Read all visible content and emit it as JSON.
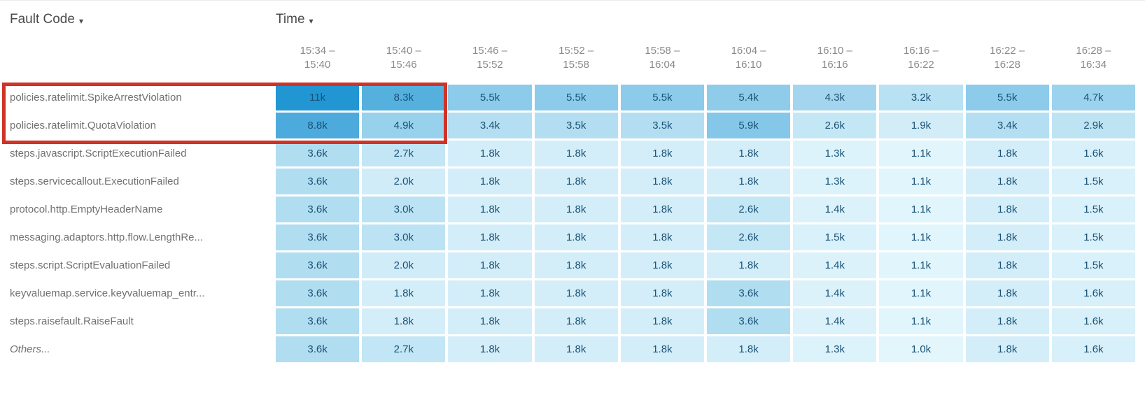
{
  "toolbar": {
    "fault_code_label": "Fault Code",
    "time_label": "Time",
    "dropdown_caret": "▾"
  },
  "highlight": {
    "color": "#cf3327",
    "note": "red rectangle drawn around the first two fault-code rows, spanning the label column and the first two time columns"
  },
  "colors": {
    "heat_min": "#e3f6fc",
    "heat_max": "#2196d3",
    "cell_text": "#1a5276",
    "row_label_text": "#717171",
    "toolbar_text": "#4a4a4a",
    "column_header_text": "#8a8a8a"
  },
  "chart_data": {
    "type": "heatmap",
    "xlabel": "Time",
    "ylabel": "Fault Code",
    "unit": "k",
    "columns": [
      "15:34 – 15:40",
      "15:40 – 15:46",
      "15:46 – 15:52",
      "15:52 – 15:58",
      "15:58 – 16:04",
      "16:04 – 16:10",
      "16:10 – 16:16",
      "16:16 – 16:22",
      "16:22 – 16:28",
      "16:28 – 16:34"
    ],
    "rows": [
      {
        "label": "policies.ratelimit.SpikeArrestViolation",
        "italic": false
      },
      {
        "label": "policies.ratelimit.QuotaViolation",
        "italic": false
      },
      {
        "label": "steps.javascript.ScriptExecutionFailed",
        "italic": false
      },
      {
        "label": "steps.servicecallout.ExecutionFailed",
        "italic": false
      },
      {
        "label": "protocol.http.EmptyHeaderName",
        "italic": false
      },
      {
        "label": "messaging.adaptors.http.flow.LengthRe...",
        "italic": false
      },
      {
        "label": "steps.script.ScriptEvaluationFailed",
        "italic": false
      },
      {
        "label": "keyvaluemap.service.keyvaluemap_entr...",
        "italic": false
      },
      {
        "label": "steps.raisefault.RaiseFault",
        "italic": false
      },
      {
        "label": "Others...",
        "italic": true
      }
    ],
    "values_k": [
      [
        11,
        8.3,
        5.5,
        5.5,
        5.5,
        5.4,
        4.3,
        3.2,
        5.5,
        4.7
      ],
      [
        8.8,
        4.9,
        3.4,
        3.5,
        3.5,
        5.9,
        2.6,
        1.9,
        3.4,
        2.9
      ],
      [
        3.6,
        2.7,
        1.8,
        1.8,
        1.8,
        1.8,
        1.3,
        1.1,
        1.8,
        1.6
      ],
      [
        3.6,
        2.0,
        1.8,
        1.8,
        1.8,
        1.8,
        1.3,
        1.1,
        1.8,
        1.5
      ],
      [
        3.6,
        3.0,
        1.8,
        1.8,
        1.8,
        2.6,
        1.4,
        1.1,
        1.8,
        1.5
      ],
      [
        3.6,
        3.0,
        1.8,
        1.8,
        1.8,
        2.6,
        1.5,
        1.1,
        1.8,
        1.5
      ],
      [
        3.6,
        2.0,
        1.8,
        1.8,
        1.8,
        1.8,
        1.4,
        1.1,
        1.8,
        1.5
      ],
      [
        3.6,
        1.8,
        1.8,
        1.8,
        1.8,
        3.6,
        1.4,
        1.1,
        1.8,
        1.6
      ],
      [
        3.6,
        1.8,
        1.8,
        1.8,
        1.8,
        3.6,
        1.4,
        1.1,
        1.8,
        1.6
      ],
      [
        3.6,
        2.7,
        1.8,
        1.8,
        1.8,
        1.8,
        1.3,
        1.0,
        1.8,
        1.6
      ]
    ],
    "values_display": [
      [
        "11k",
        "8.3k",
        "5.5k",
        "5.5k",
        "5.5k",
        "5.4k",
        "4.3k",
        "3.2k",
        "5.5k",
        "4.7k"
      ],
      [
        "8.8k",
        "4.9k",
        "3.4k",
        "3.5k",
        "3.5k",
        "5.9k",
        "2.6k",
        "1.9k",
        "3.4k",
        "2.9k"
      ],
      [
        "3.6k",
        "2.7k",
        "1.8k",
        "1.8k",
        "1.8k",
        "1.8k",
        "1.3k",
        "1.1k",
        "1.8k",
        "1.6k"
      ],
      [
        "3.6k",
        "2.0k",
        "1.8k",
        "1.8k",
        "1.8k",
        "1.8k",
        "1.3k",
        "1.1k",
        "1.8k",
        "1.5k"
      ],
      [
        "3.6k",
        "3.0k",
        "1.8k",
        "1.8k",
        "1.8k",
        "2.6k",
        "1.4k",
        "1.1k",
        "1.8k",
        "1.5k"
      ],
      [
        "3.6k",
        "3.0k",
        "1.8k",
        "1.8k",
        "1.8k",
        "2.6k",
        "1.5k",
        "1.1k",
        "1.8k",
        "1.5k"
      ],
      [
        "3.6k",
        "2.0k",
        "1.8k",
        "1.8k",
        "1.8k",
        "1.8k",
        "1.4k",
        "1.1k",
        "1.8k",
        "1.5k"
      ],
      [
        "3.6k",
        "1.8k",
        "1.8k",
        "1.8k",
        "1.8k",
        "3.6k",
        "1.4k",
        "1.1k",
        "1.8k",
        "1.6k"
      ],
      [
        "3.6k",
        "1.8k",
        "1.8k",
        "1.8k",
        "1.8k",
        "3.6k",
        "1.4k",
        "1.1k",
        "1.8k",
        "1.6k"
      ],
      [
        "3.6k",
        "2.7k",
        "1.8k",
        "1.8k",
        "1.8k",
        "1.8k",
        "1.3k",
        "1.0k",
        "1.8k",
        "1.6k"
      ]
    ],
    "color_scale": {
      "min_value_k": 1.0,
      "max_value_k": 11.0,
      "min_color": "#e3f6fc",
      "max_color": "#2196d3"
    },
    "legend_position": "none",
    "grid": false
  }
}
